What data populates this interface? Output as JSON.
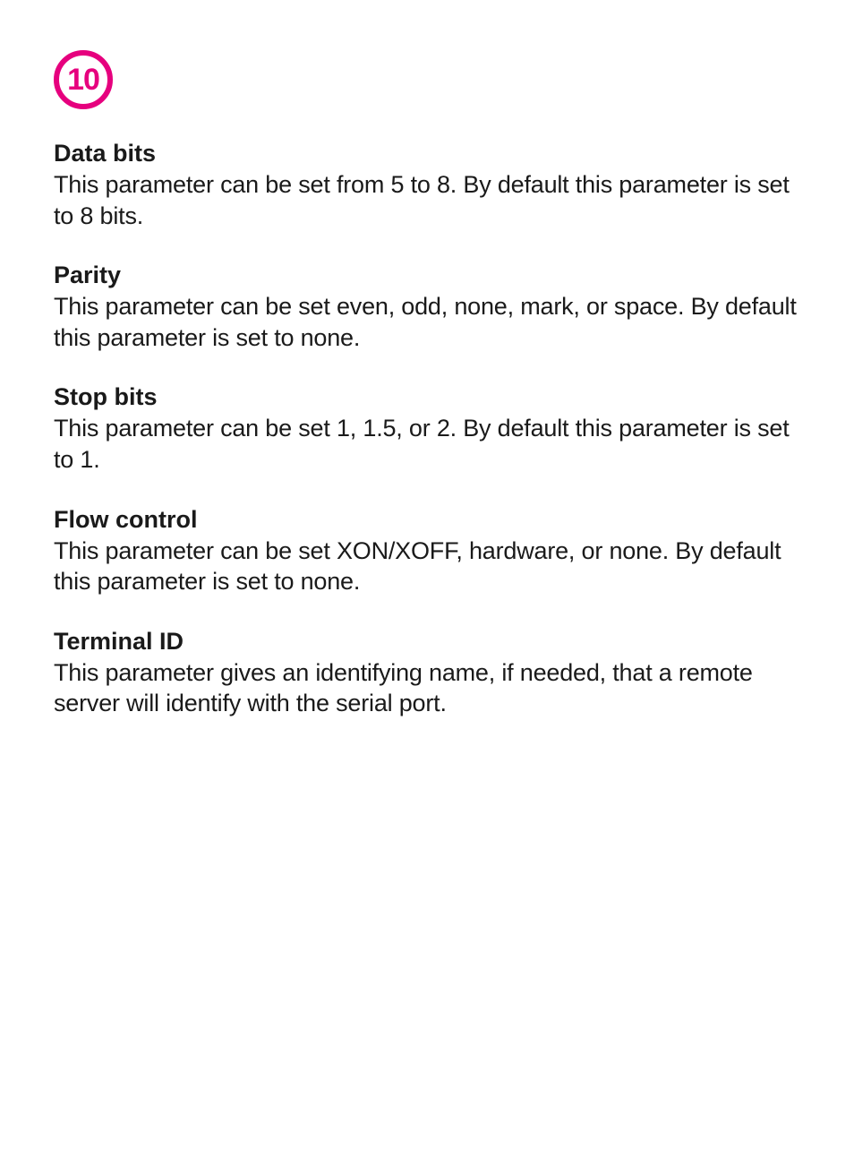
{
  "chapter": {
    "number": "10",
    "badge_color": "#e6007e"
  },
  "sections": [
    {
      "title": "Data bits",
      "body": "This parameter can be set from 5 to 8. By default this parameter is set to 8 bits."
    },
    {
      "title": "Parity",
      "body": "This parameter can be set even, odd, none, mark, or space. By default this parameter is set to none."
    },
    {
      "title": "Stop bits",
      "body": "This parameter can be set 1, 1.5, or 2. By default this parameter is set to 1."
    },
    {
      "title": "Flow control",
      "body": "This parameter can be set XON/XOFF, hardware, or none. By default this parameter is set to none."
    },
    {
      "title": "Terminal ID",
      "body": "This parameter gives an identifying name, if needed, that a remote server will identify with the serial port."
    }
  ],
  "typography": {
    "title_fontsize": 27,
    "title_fontweight": 700,
    "body_fontsize": 27,
    "body_fontweight": 400,
    "text_color": "#1a1a1a",
    "background_color": "#ffffff"
  }
}
